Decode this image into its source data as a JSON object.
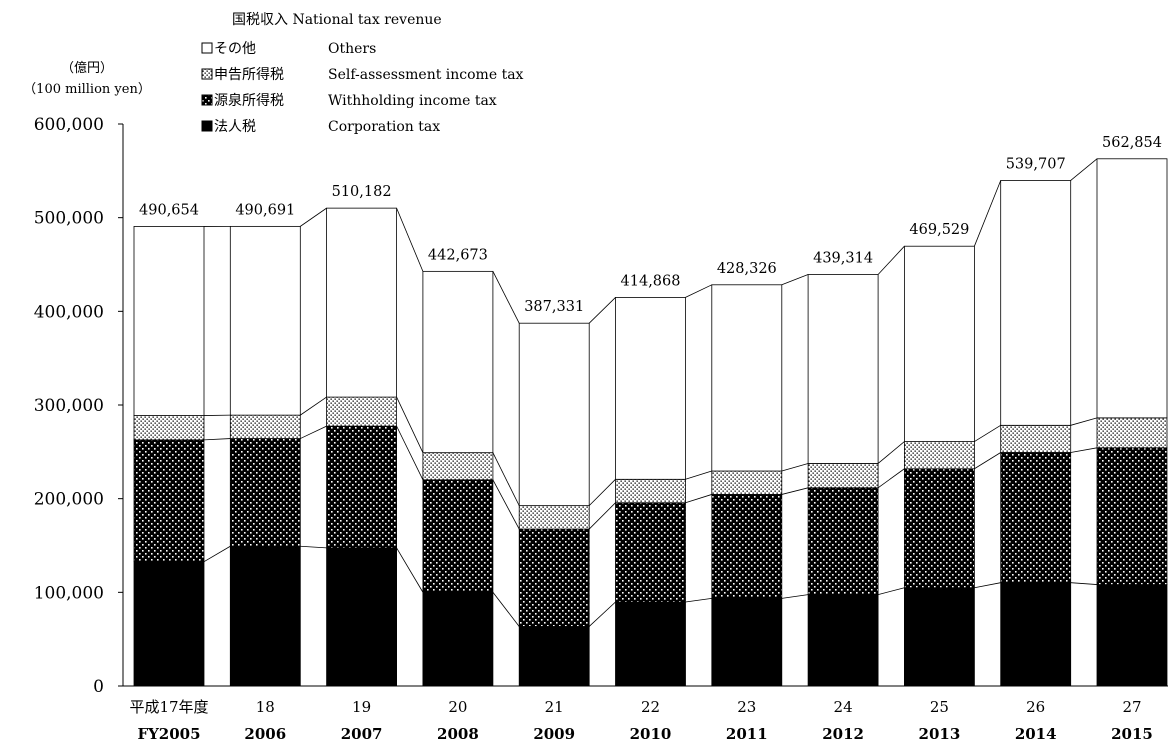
{
  "chart_data": {
    "type": "bar",
    "stacked": true,
    "legend_title": "国税収入  National tax revenue",
    "unit_jp": "（億円）",
    "unit_en": "（100 million yen）",
    "categories_jp": [
      "平成17年度",
      "18",
      "19",
      "20",
      "21",
      "22",
      "23",
      "24",
      "25",
      "26",
      "27"
    ],
    "categories_fy": [
      "FY2005",
      "2006",
      "2007",
      "2008",
      "2009",
      "2010",
      "2011",
      "2012",
      "2013",
      "2014",
      "2015"
    ],
    "ylim": [
      0,
      600000
    ],
    "yticks": [
      "0",
      "100,000",
      "200,000",
      "300,000",
      "400,000",
      "500,000",
      "600,000"
    ],
    "grid": false,
    "legend_position": "top-left",
    "series": [
      {
        "name": "法人税",
        "name_en": "Corporation tax",
        "fill": "#000000",
        "values": [
          132736,
          149179,
          147444,
          100106,
          63564,
          89677,
          93514,
          97583,
          104937,
          110316,
          108274
        ]
      },
      {
        "name": "源泉所得税",
        "name_en": "Withholding income tax",
        "fill": "crosshatch",
        "values": [
          130000,
          115000,
          130000,
          120000,
          104000,
          106000,
          111000,
          114000,
          127000,
          139000,
          146000
        ]
      },
      {
        "name": "申告所得税",
        "name_en": "Self-assessment income tax",
        "fill": "dots",
        "values": [
          26000,
          25000,
          31000,
          29000,
          25000,
          25000,
          25000,
          26000,
          29000,
          29000,
          32000
        ]
      },
      {
        "name": "その他",
        "name_en": "Others",
        "fill": "#ffffff",
        "values": [
          201918,
          201512,
          201738,
          193567,
          194767,
          194191,
          198812,
          201731,
          208592,
          261391,
          276580
        ]
      }
    ],
    "totals": [
      490654,
      490691,
      510182,
      442673,
      387331,
      414868,
      428326,
      439314,
      469529,
      539707,
      562854
    ],
    "total_labels": [
      "490,654",
      "490,691",
      "510,182",
      "442,673",
      "387,331",
      "414,868",
      "428,326",
      "439,314",
      "469,529",
      "539,707",
      "562,854"
    ]
  }
}
